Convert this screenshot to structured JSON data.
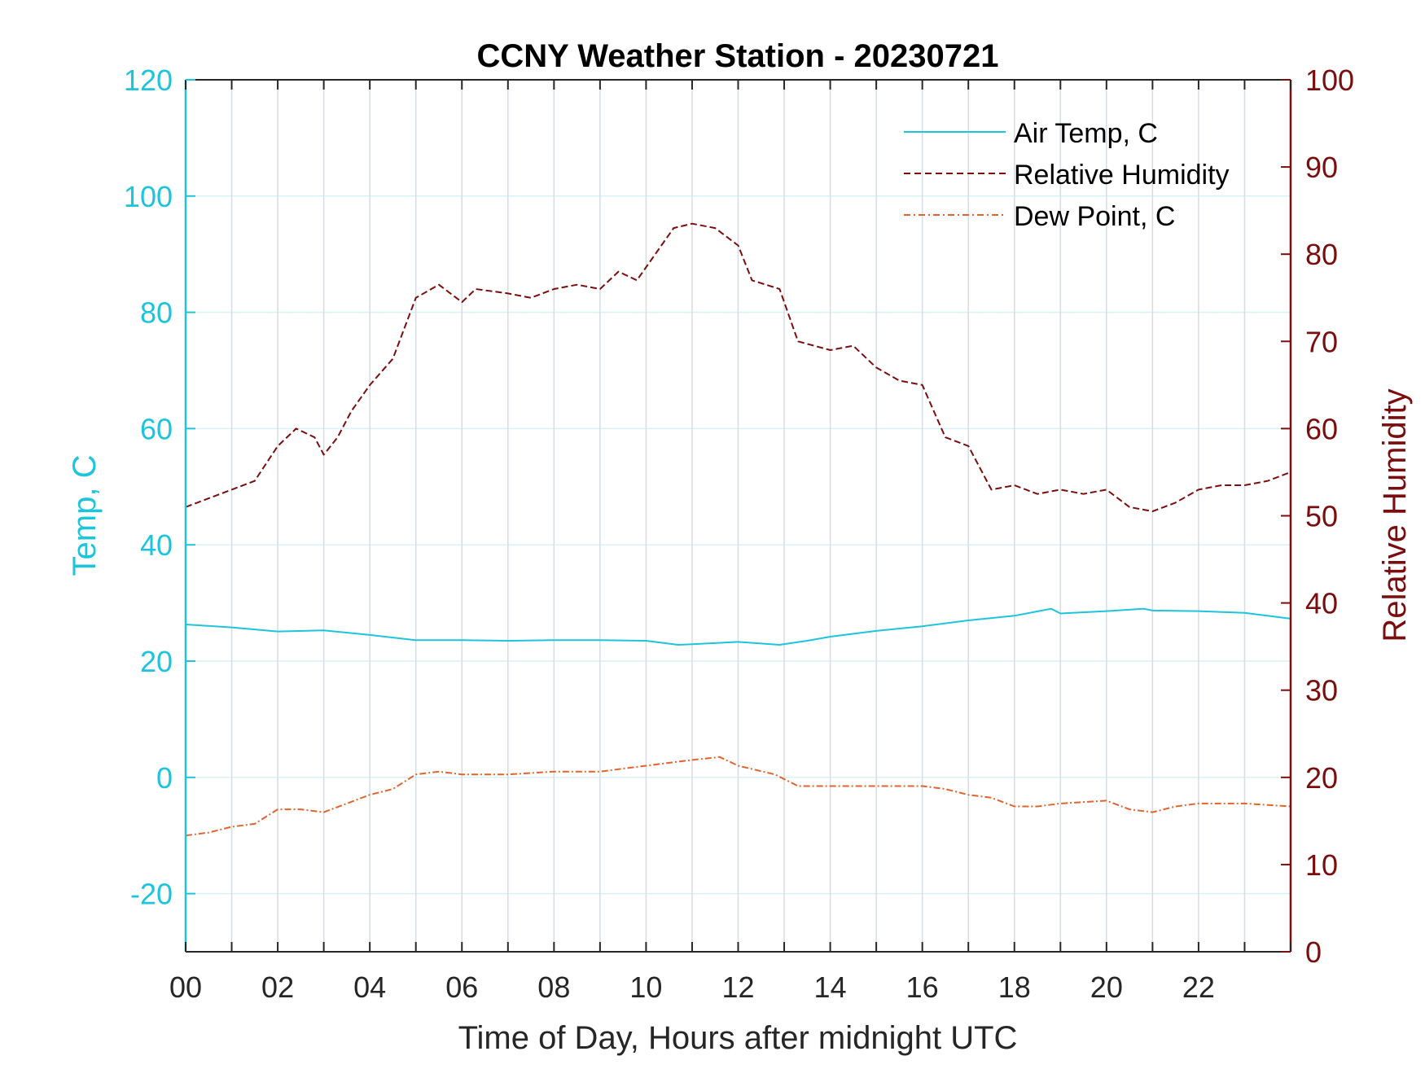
{
  "chart_data": {
    "type": "line",
    "title": "CCNY Weather Station - 20230721",
    "xlabel": "Time of Day, Hours after midnight UTC",
    "ylabel_left": "Temp, C",
    "ylabel_right": "Relative Humidity",
    "xlim": [
      0,
      24
    ],
    "ylim_left": [
      -30,
      120
    ],
    "ylim_right": [
      0,
      100
    ],
    "x_ticks": [
      0,
      2,
      4,
      6,
      8,
      10,
      12,
      14,
      16,
      18,
      20,
      22
    ],
    "x_tick_labels": [
      "00",
      "02",
      "04",
      "06",
      "08",
      "10",
      "12",
      "14",
      "16",
      "18",
      "20",
      "22"
    ],
    "y_left_ticks": [
      -20,
      0,
      20,
      40,
      60,
      80,
      100,
      120
    ],
    "y_left_tick_labels": [
      "-20",
      "0",
      "20",
      "40",
      "60",
      "80",
      "100",
      "120"
    ],
    "y_right_ticks": [
      0,
      10,
      20,
      30,
      40,
      50,
      60,
      70,
      80,
      90,
      100
    ],
    "y_right_tick_labels": [
      "0",
      "10",
      "20",
      "30",
      "40",
      "50",
      "60",
      "70",
      "80",
      "90",
      "100"
    ],
    "grid": true,
    "legend_position": "top-right",
    "colors": {
      "air_temp": "#1ec4db",
      "relative_humidity": "#7a0d0d",
      "dew_point": "#e0642d",
      "vgrid": "#d5dde3",
      "hgrid": "#d8f1f6"
    },
    "series": [
      {
        "name": "Air Temp, C",
        "axis": "left",
        "style": "solid",
        "x": [
          0,
          1,
          2,
          3,
          4,
          5,
          6,
          7,
          8,
          9,
          10,
          10.7,
          11,
          12,
          12.9,
          13.5,
          14,
          15,
          16,
          17,
          18,
          18.8,
          19,
          20,
          20.8,
          21,
          22,
          23,
          24
        ],
        "values": [
          26.3,
          25.8,
          25.1,
          25.3,
          24.5,
          23.6,
          23.6,
          23.5,
          23.6,
          23.6,
          23.5,
          22.8,
          22.9,
          23.3,
          22.8,
          23.5,
          24.2,
          25.2,
          26.0,
          27.0,
          27.8,
          29.0,
          28.2,
          28.6,
          29.0,
          28.7,
          28.6,
          28.3,
          27.3
        ]
      },
      {
        "name": "Relative Humidity",
        "axis": "right",
        "style": "dashed",
        "x": [
          0,
          0.5,
          1,
          1.5,
          2,
          2.4,
          2.8,
          3,
          3.3,
          3.6,
          4,
          4.5,
          5,
          5.5,
          6,
          6.3,
          7,
          7.5,
          8,
          8.5,
          9,
          9.4,
          9.8,
          10.2,
          10.6,
          11,
          11.5,
          12,
          12.3,
          12.9,
          13.3,
          14,
          14.5,
          15,
          15.5,
          16,
          16.5,
          17,
          17.5,
          18,
          18.5,
          19,
          19.5,
          20,
          20.5,
          21,
          21.5,
          22,
          22.5,
          23,
          23.5,
          24
        ],
        "values": [
          51,
          52,
          53,
          54,
          58,
          60,
          59,
          57,
          59,
          62,
          65,
          68,
          75,
          76.5,
          74.5,
          76,
          75.5,
          75,
          76,
          76.5,
          76,
          78,
          77,
          80,
          83,
          83.5,
          83,
          81,
          77,
          76,
          70,
          69,
          69.5,
          67,
          65.5,
          65,
          59,
          58,
          53,
          53.5,
          52.5,
          53,
          52.5,
          53,
          51,
          50.5,
          51.5,
          53,
          53.5,
          53.5,
          54,
          55
        ]
      },
      {
        "name": "Dew Point, C",
        "axis": "left",
        "style": "dashdot",
        "x": [
          0,
          0.5,
          1,
          1.5,
          2,
          2.5,
          3,
          3.5,
          4,
          4.5,
          5,
          5.5,
          6,
          7,
          8,
          9,
          10,
          11,
          11.6,
          12,
          12.8,
          13.3,
          14,
          15,
          16,
          16.5,
          17,
          17.5,
          18,
          18.5,
          19,
          20,
          20.5,
          21,
          21.5,
          22,
          22.5,
          23,
          24
        ],
        "values": [
          -10,
          -9.5,
          -8.5,
          -8,
          -5.5,
          -5.5,
          -6,
          -4.5,
          -3,
          -2,
          0.5,
          1,
          0.5,
          0.5,
          1,
          1,
          2,
          3,
          3.5,
          2,
          0.5,
          -1.5,
          -1.5,
          -1.5,
          -1.5,
          -2,
          -3,
          -3.5,
          -5,
          -5,
          -4.5,
          -4,
          -5.5,
          -6,
          -5,
          -4.5,
          -4.5,
          -4.5,
          -5
        ]
      }
    ]
  }
}
